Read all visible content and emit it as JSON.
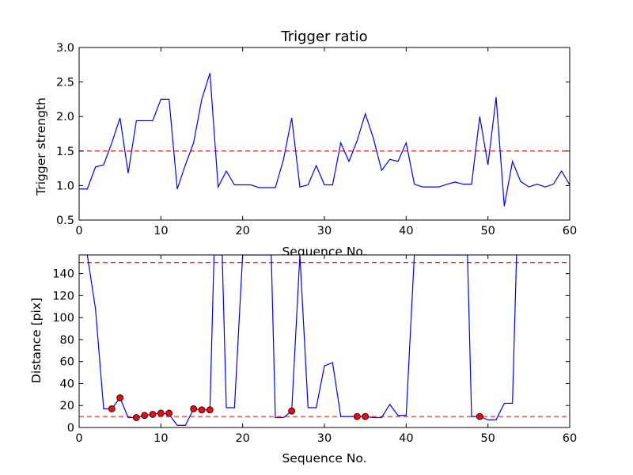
{
  "chart_data": [
    {
      "type": "line",
      "title": "Trigger ratio",
      "xlabel": "Sequence No.",
      "ylabel": "Trigger strength",
      "xlim": [
        0,
        60
      ],
      "ylim": [
        0.5,
        3.0
      ],
      "xticks": [
        "0",
        "10",
        "20",
        "30",
        "40",
        "50",
        "60"
      ],
      "yticks": [
        "0.5",
        "1.0",
        "1.5",
        "2.0",
        "2.5",
        "3.0"
      ],
      "grid": false,
      "series": [
        {
          "color": "#0000ff",
          "x": [
            0,
            1,
            2,
            3,
            4,
            5,
            6,
            7,
            8,
            9,
            10,
            11,
            12,
            13,
            14,
            15,
            16,
            17,
            18,
            19,
            20,
            21,
            22,
            23,
            24,
            25,
            26,
            27,
            28,
            29,
            30,
            31,
            32,
            33,
            34,
            35,
            36,
            37,
            38,
            39,
            40,
            41,
            42,
            43,
            44,
            45,
            46,
            47,
            48,
            49,
            50,
            51,
            52,
            53,
            54,
            55,
            56,
            57,
            58,
            59,
            60
          ],
          "y": [
            0.95,
            0.95,
            1.27,
            1.3,
            1.62,
            1.98,
            1.18,
            1.94,
            1.94,
            1.94,
            2.25,
            2.25,
            0.95,
            1.3,
            1.62,
            2.25,
            2.63,
            0.98,
            1.21,
            1.01,
            1.01,
            1.01,
            0.97,
            0.97,
            0.97,
            1.38,
            1.98,
            0.98,
            1.01,
            1.29,
            1.01,
            1.01,
            1.62,
            1.35,
            1.65,
            2.04,
            1.68,
            1.22,
            1.38,
            1.35,
            1.62,
            1.02,
            0.98,
            0.98,
            0.98,
            1.02,
            1.05,
            1.02,
            1.02,
            2.0,
            1.3,
            2.28,
            0.7,
            1.35,
            1.06,
            0.98,
            1.02,
            0.98,
            1.02,
            1.21,
            1.01
          ]
        }
      ],
      "reference_lines": [
        {
          "axis": "y",
          "value": 1.5,
          "color": "#ff0000",
          "style": "dashed"
        }
      ]
    },
    {
      "type": "line",
      "xlabel": "Sequence No.",
      "ylabel": "Distance [pix]",
      "xlim": [
        0,
        60
      ],
      "ylim": [
        0,
        157
      ],
      "xticks": [
        "0",
        "10",
        "20",
        "30",
        "40",
        "50",
        "60"
      ],
      "yticks": [
        "0",
        "20",
        "40",
        "60",
        "80",
        "100",
        "120",
        "140"
      ],
      "grid": false,
      "series": [
        {
          "color": "#0000ff",
          "x": [
            1,
            2,
            3,
            4,
            5,
            6,
            7,
            8,
            9,
            10,
            11,
            12,
            13,
            14,
            15,
            16,
            16.5,
            17.5,
            18,
            19,
            20,
            23.5,
            24,
            25,
            26,
            27,
            28,
            29,
            30,
            31,
            32,
            33,
            34,
            35,
            36,
            37,
            38,
            39,
            40,
            41,
            47.5,
            48,
            49,
            50,
            51,
            52,
            53,
            53.5
          ],
          "y": [
            157,
            108,
            17,
            17,
            27,
            9,
            9,
            11,
            12,
            13,
            12,
            2,
            2,
            17,
            16,
            16,
            157,
            157,
            18,
            18,
            157,
            157,
            9,
            9,
            15,
            157,
            18,
            18,
            56,
            59,
            10,
            10,
            10,
            10,
            9,
            9,
            21,
            11,
            11,
            157,
            157,
            10,
            10,
            7,
            7,
            22,
            22,
            157
          ]
        }
      ],
      "markers": {
        "color": "#ff0000",
        "x": [
          4,
          5,
          7,
          8,
          9,
          10,
          11,
          14,
          15,
          16,
          26,
          34,
          35,
          49
        ],
        "y": [
          17,
          27,
          9,
          11,
          12,
          13,
          13,
          17,
          16,
          16,
          15,
          10,
          10,
          10
        ]
      },
      "reference_lines": [
        {
          "axis": "y",
          "value": 150,
          "color": "#ff0000",
          "style": "dashed"
        },
        {
          "axis": "y",
          "value": 10,
          "color": "#ff0000",
          "style": "dashed"
        }
      ]
    }
  ]
}
